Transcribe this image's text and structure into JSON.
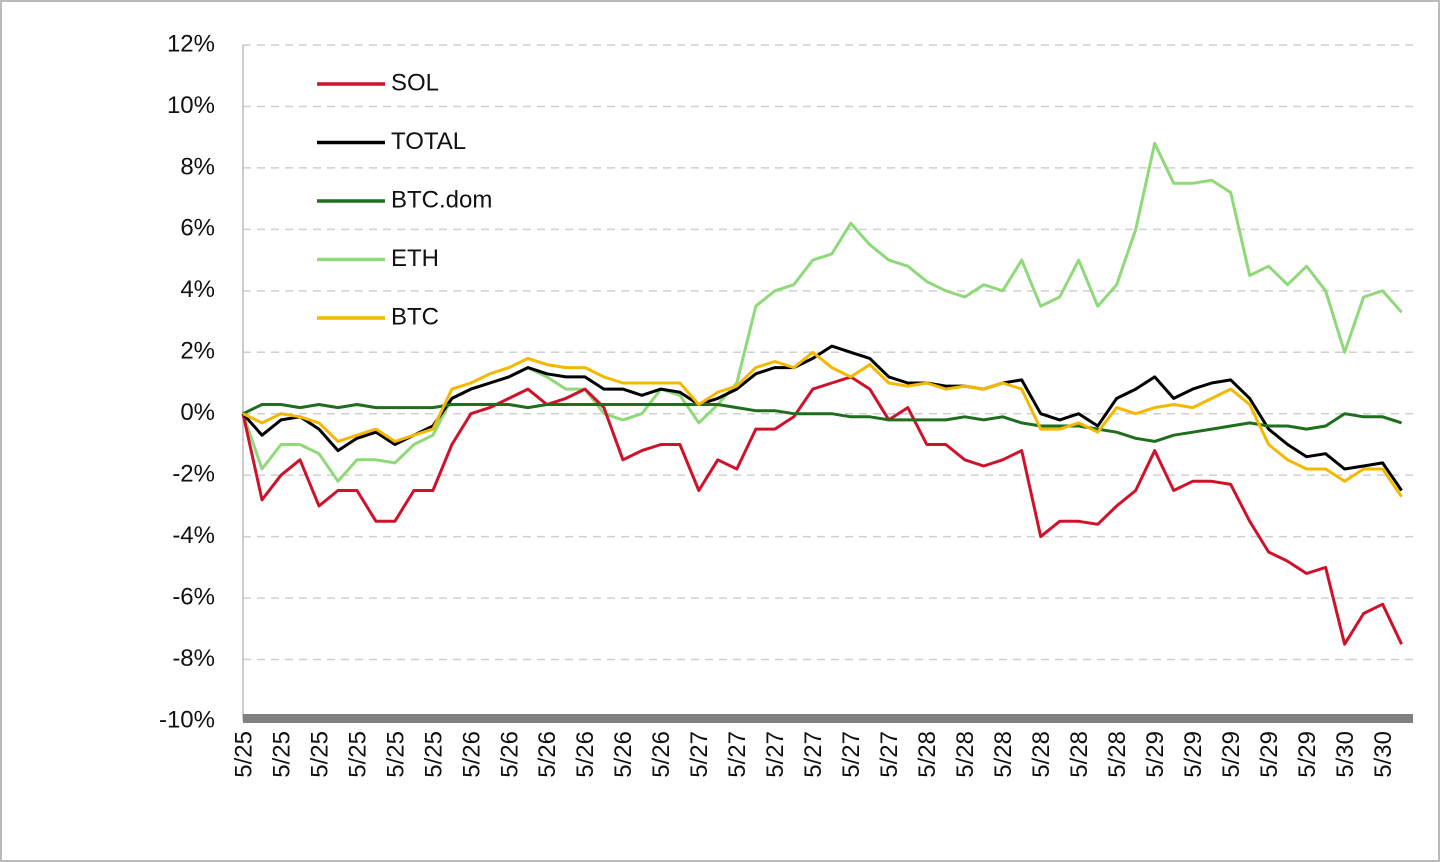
{
  "chart_data": {
    "type": "line",
    "categories": [
      "5/25",
      null,
      "5/25",
      null,
      "5/25",
      null,
      "5/25",
      null,
      "5/25",
      null,
      "5/25",
      null,
      "5/26",
      null,
      "5/26",
      null,
      "5/26",
      null,
      "5/26",
      null,
      "5/26",
      null,
      "5/26",
      null,
      "5/27",
      null,
      "5/27",
      null,
      "5/27",
      null,
      "5/27",
      null,
      "5/27",
      null,
      "5/27",
      null,
      "5/28",
      null,
      "5/28",
      null,
      "5/28",
      null,
      "5/28",
      null,
      "5/28",
      null,
      "5/28",
      null,
      "5/29",
      null,
      "5/29",
      null,
      "5/29",
      null,
      "5/29",
      null,
      "5/29",
      null,
      "5/30",
      null,
      "5/30",
      null
    ],
    "ylim": [
      -10,
      12
    ],
    "yticks": [
      {
        "value": -10,
        "label": "-10%"
      },
      {
        "value": -8,
        "label": "-8%"
      },
      {
        "value": -6,
        "label": "-6%"
      },
      {
        "value": -4,
        "label": "-4%"
      },
      {
        "value": -2,
        "label": "-2%"
      },
      {
        "value": 0,
        "label": "0%"
      },
      {
        "value": 2,
        "label": "2%"
      },
      {
        "value": 4,
        "label": "4%"
      },
      {
        "value": 6,
        "label": "6%"
      },
      {
        "value": 8,
        "label": "8%"
      },
      {
        "value": 10,
        "label": "10%"
      },
      {
        "value": 12,
        "label": "12%"
      }
    ],
    "grid": true,
    "legend": "top-left",
    "series": [
      {
        "name": "SOL",
        "color": "#d0112b",
        "values": [
          0,
          -2.8,
          -2,
          -1.5,
          -3,
          -2.5,
          -2.5,
          -3.5,
          -3.5,
          -2.5,
          -2.5,
          -1,
          0,
          0.2,
          0.5,
          0.8,
          0.3,
          0.5,
          0.8,
          0.2,
          -1.5,
          -1.2,
          -1,
          -1,
          -2.5,
          -1.5,
          -1.8,
          -0.5,
          -0.5,
          -0.1,
          0.8,
          1,
          1.2,
          0.8,
          -0.2,
          0.2,
          -1,
          -1,
          -1.5,
          -1.7,
          -1.5,
          -1.2,
          -4,
          -3.5,
          -3.5,
          -3.6,
          -3,
          -2.5,
          -1.2,
          -2.5,
          -2.2,
          -2.2,
          -2.3,
          -3.5,
          -4.5,
          -4.8,
          -5.2,
          -5,
          -7.5,
          -6.5,
          -6.2,
          -7.5
        ]
      },
      {
        "name": "TOTAL",
        "color": "#000000",
        "values": [
          0,
          -0.7,
          -0.2,
          -0.1,
          -0.5,
          -1.2,
          -0.8,
          -0.6,
          -1,
          -0.7,
          -0.4,
          0.5,
          0.8,
          1,
          1.2,
          1.5,
          1.3,
          1.2,
          1.2,
          0.8,
          0.8,
          0.6,
          0.8,
          0.7,
          0.3,
          0.5,
          0.8,
          1.3,
          1.5,
          1.5,
          1.8,
          2.2,
          2,
          1.8,
          1.2,
          1,
          1,
          0.9,
          0.9,
          0.8,
          1,
          1.1,
          0,
          -0.2,
          0,
          -0.4,
          0.5,
          0.8,
          1.2,
          0.5,
          0.8,
          1,
          1.1,
          0.5,
          -0.5,
          -1,
          -1.4,
          -1.3,
          -1.8,
          -1.7,
          -1.6,
          -2.5
        ]
      },
      {
        "name": "BTC.dom",
        "color": "#1e6e1e",
        "values": [
          0,
          0.3,
          0.3,
          0.2,
          0.3,
          0.2,
          0.3,
          0.2,
          0.2,
          0.2,
          0.2,
          0.3,
          0.3,
          0.3,
          0.3,
          0.2,
          0.3,
          0.3,
          0.3,
          0.3,
          0.3,
          0.3,
          0.3,
          0.3,
          0.3,
          0.3,
          0.2,
          0.1,
          0.1,
          0,
          0,
          0,
          -0.1,
          -0.1,
          -0.2,
          -0.2,
          -0.2,
          -0.2,
          -0.1,
          -0.2,
          -0.1,
          -0.3,
          -0.4,
          -0.4,
          -0.4,
          -0.5,
          -0.6,
          -0.8,
          -0.9,
          -0.7,
          -0.6,
          -0.5,
          -0.4,
          -0.3,
          -0.4,
          -0.4,
          -0.5,
          -0.4,
          0,
          -0.1,
          -0.1,
          -0.3
        ]
      },
      {
        "name": "ETH",
        "color": "#8fd97a",
        "values": [
          0,
          -1.8,
          -1,
          -1,
          -1.3,
          -2.2,
          -1.5,
          -1.5,
          -1.6,
          -1,
          -0.7,
          0.5,
          0.8,
          1,
          1.2,
          1.5,
          1.2,
          0.8,
          0.8,
          0,
          -0.2,
          0,
          0.8,
          0.6,
          -0.3,
          0.3,
          1,
          3.5,
          4,
          4.2,
          5,
          5.2,
          6.2,
          5.5,
          5,
          4.8,
          4.3,
          4,
          3.8,
          4.2,
          4,
          5,
          3.5,
          3.8,
          5,
          3.5,
          4.2,
          6,
          8.8,
          7.5,
          7.5,
          7.6,
          7.2,
          4.5,
          4.8,
          4.2,
          4.8,
          4,
          2,
          3.8,
          4,
          3.3
        ]
      },
      {
        "name": "BTC",
        "color": "#f5b800",
        "values": [
          0,
          -0.3,
          0,
          -0.1,
          -0.3,
          -0.9,
          -0.7,
          -0.5,
          -0.9,
          -0.7,
          -0.5,
          0.8,
          1,
          1.3,
          1.5,
          1.8,
          1.6,
          1.5,
          1.5,
          1.2,
          1,
          1,
          1,
          1,
          0.3,
          0.7,
          0.9,
          1.5,
          1.7,
          1.5,
          2,
          1.5,
          1.2,
          1.6,
          1,
          0.9,
          1,
          0.8,
          0.9,
          0.8,
          1,
          0.8,
          -0.5,
          -0.5,
          -0.3,
          -0.6,
          0.2,
          0,
          0.2,
          0.3,
          0.2,
          0.5,
          0.8,
          0.3,
          -1,
          -1.5,
          -1.8,
          -1.8,
          -2.2,
          -1.8,
          -1.8,
          -2.7
        ]
      }
    ]
  }
}
